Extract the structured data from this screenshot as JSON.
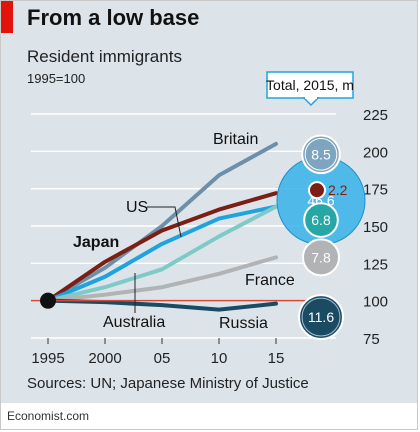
{
  "page": {
    "title": "From a low base",
    "subtitle": "Resident immigrants",
    "index_note": "1995=100",
    "source": "Sources: UN; Japanese Ministry of Justice",
    "credit": "Economist.com"
  },
  "colors": {
    "background": "#dce4ea",
    "brand_red": "#e3120b",
    "baseline": "#d04a3a"
  },
  "chart_data": {
    "type": "line",
    "x": [
      1995,
      2000,
      2005,
      2010,
      2015
    ],
    "x_tick_labels": [
      "1995",
      "2000",
      "05",
      "10",
      "15"
    ],
    "ylim": [
      75,
      225
    ],
    "y_ticks": [
      75,
      100,
      125,
      150,
      175,
      200,
      225
    ],
    "y_tick_labels": [
      "75",
      "100",
      "125",
      "150",
      "175",
      "200",
      "225"
    ],
    "baseline_value": 100,
    "grid": true,
    "series": [
      {
        "name": "Britain",
        "color": "#6d90a8",
        "values": [
          100,
          122,
          150,
          184,
          205
        ]
      },
      {
        "name": "Japan",
        "color": "#7b1f14",
        "values": [
          100,
          126,
          147,
          161,
          172
        ]
      },
      {
        "name": "US",
        "color": "#1fa3e0",
        "values": [
          100,
          116,
          138,
          155,
          163
        ]
      },
      {
        "name": "Australia",
        "color": "#7fcac8",
        "values": [
          100,
          109,
          121,
          143,
          163
        ]
      },
      {
        "name": "France",
        "color": "#b1b3b5",
        "values": [
          100,
          104,
          109,
          118,
          129
        ]
      },
      {
        "name": "Russia",
        "color": "#1b4a63",
        "values": [
          100,
          99,
          97,
          94,
          98
        ]
      }
    ],
    "bubble_legend_title": "Total, 2015, m",
    "bubbles": [
      {
        "series": "Britain",
        "label": "8.5",
        "value": 8.5,
        "y": 198,
        "color": "#7ea5c0"
      },
      {
        "series": "US",
        "label": "46.6",
        "value": 46.6,
        "y": 167,
        "color": "#36b1ea"
      },
      {
        "series": "Japan",
        "label": "2.2",
        "value": 2.2,
        "y": 174,
        "color": "#7b1f14"
      },
      {
        "series": "Australia",
        "label": "6.8",
        "value": 6.8,
        "y": 154,
        "color": "#27a6a6"
      },
      {
        "series": "France",
        "label": "7.8",
        "value": 7.8,
        "y": 129,
        "color": "#b1b3b5"
      },
      {
        "series": "Russia",
        "label": "11.6",
        "value": 11.6,
        "y": 89,
        "color": "#1b4a63"
      }
    ],
    "annotations": [
      "Britain",
      "US",
      "Japan",
      "France",
      "Australia",
      "Russia"
    ]
  }
}
